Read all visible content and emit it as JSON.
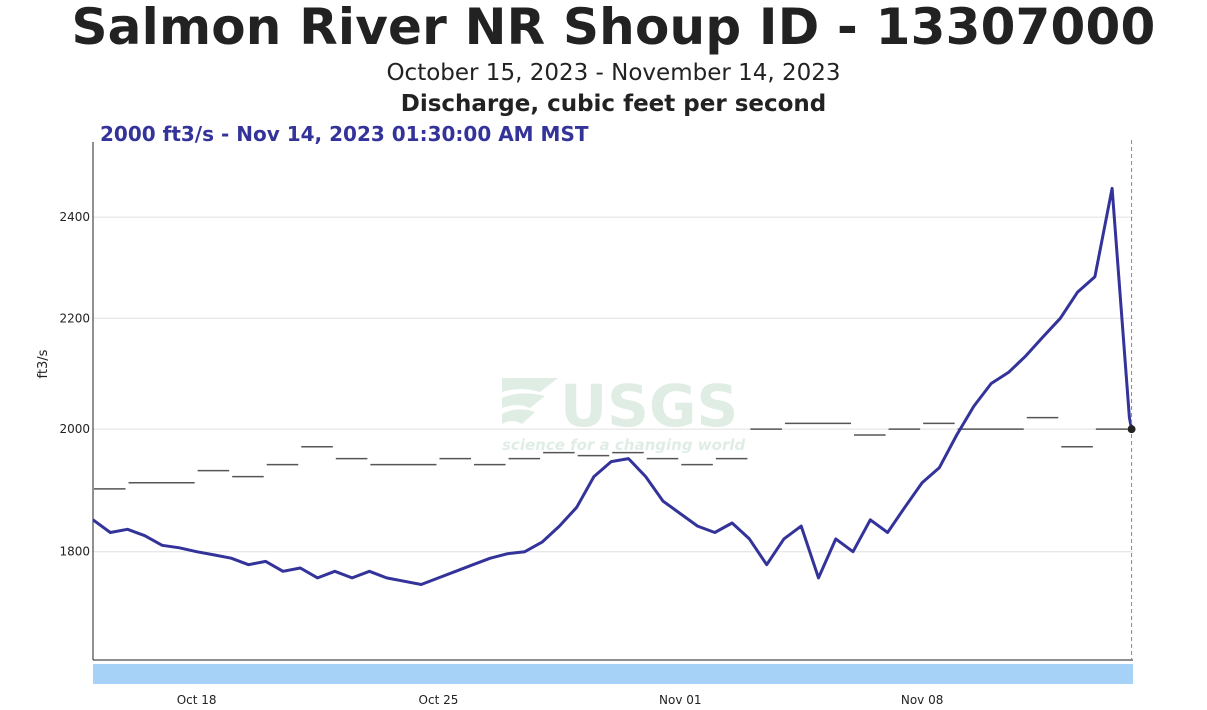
{
  "header": {
    "title": "Salmon River NR Shoup ID - 13307000",
    "date_range": "October 15, 2023 - November 14, 2023",
    "statistic": "Discharge, cubic feet per second",
    "tooltip": "2000 ft3/s - Nov 14, 2023 01:30:00 AM MST"
  },
  "watermark": {
    "logo": "USGS",
    "tagline": "science for a changing world"
  },
  "colors": {
    "discharge": "#33339a",
    "median": "#555555",
    "grid": "#e0e0e0",
    "brush": "#a6d2f7",
    "watermark": "#2e8b57"
  },
  "chart_data": {
    "type": "line",
    "title": "Salmon River NR Shoup ID - 13307000",
    "ylabel": "ft3/s",
    "xlabel": "",
    "y_scale": "log",
    "ylim": [
      1640,
      2560
    ],
    "xlim": [
      "2023-10-15 00:00",
      "2023-11-14 02:30"
    ],
    "yticks": [
      1800,
      2000,
      2200,
      2400
    ],
    "xticks": [
      {
        "label": "Oct 18",
        "date": "2023-10-18"
      },
      {
        "label": "Oct 25",
        "date": "2023-10-25"
      },
      {
        "label": "Nov 01",
        "date": "2023-11-01"
      },
      {
        "label": "Nov 08",
        "date": "2023-11-08"
      }
    ],
    "grid": true,
    "cursor_date": "2023-11-14 01:30",
    "series": [
      {
        "name": "",
        "style": "line",
        "points": [
          [
            "2023-10-15 00:00",
            1850
          ],
          [
            "2023-10-15 12:00",
            1830
          ],
          [
            "2023-10-16 00:00",
            1835
          ],
          [
            "2023-10-16 12:00",
            1825
          ],
          [
            "2023-10-17 00:00",
            1810
          ],
          [
            "2023-10-17 12:00",
            1806
          ],
          [
            "2023-10-18 00:00",
            1800
          ],
          [
            "2023-10-18 12:00",
            1795
          ],
          [
            "2023-10-19 00:00",
            1790
          ],
          [
            "2023-10-19 12:00",
            1780
          ],
          [
            "2023-10-20 00:00",
            1785
          ],
          [
            "2023-10-20 12:00",
            1770
          ],
          [
            "2023-10-21 00:00",
            1775
          ],
          [
            "2023-10-21 12:00",
            1760
          ],
          [
            "2023-10-22 00:00",
            1770
          ],
          [
            "2023-10-22 12:00",
            1760
          ],
          [
            "2023-10-23 00:00",
            1770
          ],
          [
            "2023-10-23 12:00",
            1760
          ],
          [
            "2023-10-24 00:00",
            1755
          ],
          [
            "2023-10-24 12:00",
            1750
          ],
          [
            "2023-10-25 00:00",
            1760
          ],
          [
            "2023-10-25 12:00",
            1770
          ],
          [
            "2023-10-26 00:00",
            1780
          ],
          [
            "2023-10-26 12:00",
            1790
          ],
          [
            "2023-10-27 00:00",
            1797
          ],
          [
            "2023-10-27 12:00",
            1800
          ],
          [
            "2023-10-28 00:00",
            1815
          ],
          [
            "2023-10-28 12:00",
            1840
          ],
          [
            "2023-10-29 00:00",
            1870
          ],
          [
            "2023-10-29 12:00",
            1920
          ],
          [
            "2023-10-30 00:00",
            1945
          ],
          [
            "2023-10-30 12:00",
            1950
          ],
          [
            "2023-10-31 00:00",
            1920
          ],
          [
            "2023-10-31 12:00",
            1880
          ],
          [
            "2023-11-01 00:00",
            1860
          ],
          [
            "2023-11-01 12:00",
            1840
          ],
          [
            "2023-11-02 00:00",
            1830
          ],
          [
            "2023-11-02 12:00",
            1845
          ],
          [
            "2023-11-03 00:00",
            1820
          ],
          [
            "2023-11-03 12:00",
            1780
          ],
          [
            "2023-11-04 00:00",
            1820
          ],
          [
            "2023-11-04 12:00",
            1840
          ],
          [
            "2023-11-05 00:00",
            1760
          ],
          [
            "2023-11-05 12:00",
            1820
          ],
          [
            "2023-11-06 00:00",
            1800
          ],
          [
            "2023-11-06 12:00",
            1850
          ],
          [
            "2023-11-07 00:00",
            1830
          ],
          [
            "2023-11-07 12:00",
            1870
          ],
          [
            "2023-11-08 00:00",
            1910
          ],
          [
            "2023-11-08 12:00",
            1935
          ],
          [
            "2023-11-09 00:00",
            1990
          ],
          [
            "2023-11-09 12:00",
            2040
          ],
          [
            "2023-11-10 00:00",
            2080
          ],
          [
            "2023-11-10 12:00",
            2100
          ],
          [
            "2023-11-11 00:00",
            2130
          ],
          [
            "2023-11-11 12:00",
            2165
          ],
          [
            "2023-11-12 00:00",
            2200
          ],
          [
            "2023-11-12 12:00",
            2250
          ],
          [
            "2023-11-13 00:00",
            2280
          ],
          [
            "2023-11-13 12:00",
            2460
          ],
          [
            "2023-11-14 00:00",
            2020
          ],
          [
            "2023-11-14 01:30",
            2000
          ]
        ]
      },
      {
        "name": "",
        "style": "median-steps",
        "points": [
          [
            "2023-10-15 00:00",
            1900
          ],
          [
            "2023-10-16 00:00",
            1910
          ],
          [
            "2023-10-18 00:00",
            1930
          ],
          [
            "2023-10-19 00:00",
            1920
          ],
          [
            "2023-10-20 00:00",
            1940
          ],
          [
            "2023-10-21 00:00",
            1970
          ],
          [
            "2023-10-22 00:00",
            1950
          ],
          [
            "2023-10-23 00:00",
            1940
          ],
          [
            "2023-10-25 00:00",
            1950
          ],
          [
            "2023-10-26 00:00",
            1940
          ],
          [
            "2023-10-27 00:00",
            1950
          ],
          [
            "2023-10-28 00:00",
            1960
          ],
          [
            "2023-10-29 00:00",
            1955
          ],
          [
            "2023-10-30 00:00",
            1960
          ],
          [
            "2023-10-31 00:00",
            1950
          ],
          [
            "2023-11-01 00:00",
            1940
          ],
          [
            "2023-11-02 00:00",
            1950
          ],
          [
            "2023-11-03 00:00",
            2000
          ],
          [
            "2023-11-04 00:00",
            2010
          ],
          [
            "2023-11-06 00:00",
            1990
          ],
          [
            "2023-11-07 00:00",
            2000
          ],
          [
            "2023-11-08 00:00",
            2010
          ],
          [
            "2023-11-09 00:00",
            2000
          ],
          [
            "2023-11-11 00:00",
            2020
          ],
          [
            "2023-11-12 00:00",
            1970
          ],
          [
            "2023-11-13 00:00",
            2000
          ],
          [
            "2023-11-14 00:00",
            2000
          ]
        ]
      }
    ]
  }
}
